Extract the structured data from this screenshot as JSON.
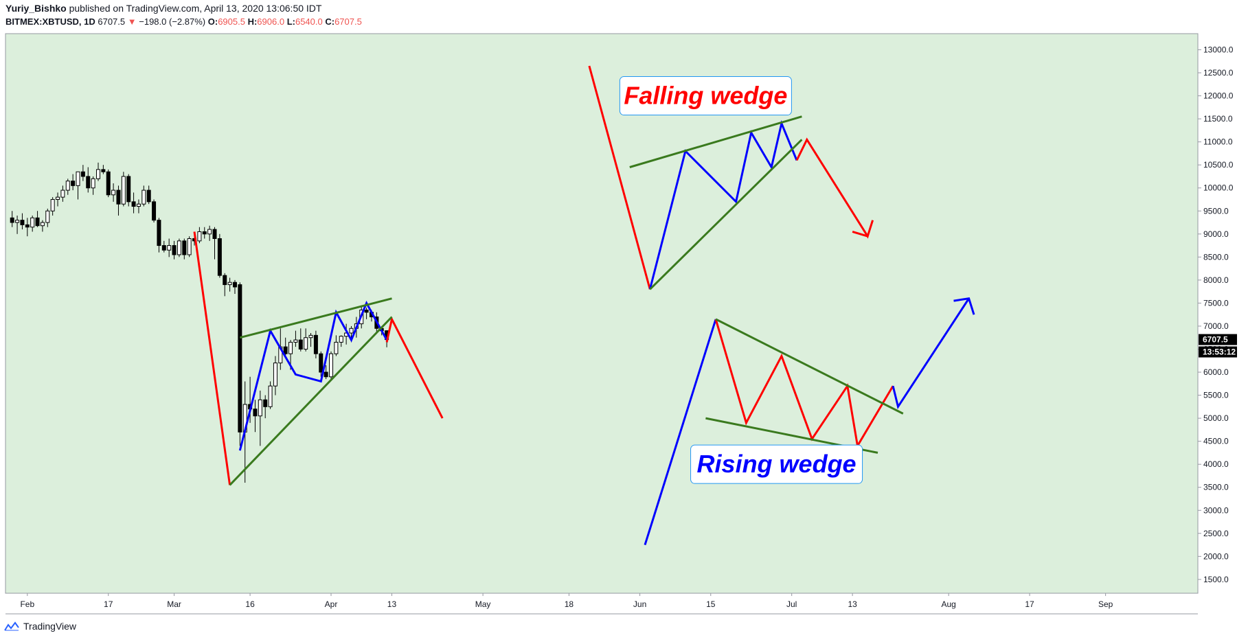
{
  "header": {
    "author": "Yuriy_Bishko",
    "published": "published on TradingView.com, April 13, 2020 13:06:50 IDT",
    "symbol": "BITMEX:XBTUSD, 1D",
    "last": "6707.5",
    "change": "−198.0 (−2.87%)",
    "o_label": "O:",
    "o": "6905.5",
    "h_label": "H:",
    "h": "6906.0",
    "l_label": "L:",
    "l": "6540.0",
    "c_label": "C:",
    "c": "6707.5"
  },
  "footer": {
    "brand": "TradingView"
  },
  "colors": {
    "bg": "#dcefdc",
    "candle": "#000000",
    "red": "#ff0000",
    "blue": "#0000ff",
    "green": "#3a7a1e"
  },
  "chart_data": {
    "type": "candlestick",
    "symbol": "BITMEX:XBTUSD",
    "interval": "1D",
    "y_axis": {
      "range": [
        1200,
        13350
      ],
      "ticks": [
        "1500.0",
        "2000.0",
        "2500.0",
        "3000.0",
        "3500.0",
        "4000.0",
        "4500.0",
        "5000.0",
        "5500.0",
        "6000.0",
        "6500.0",
        "7000.0",
        "7500.0",
        "8000.0",
        "8500.0",
        "9000.0",
        "9500.0",
        "10000.0",
        "10500.0",
        "11000.0",
        "11500.0",
        "12000.0",
        "12500.0",
        "13000.0"
      ]
    },
    "x_axis": {
      "start": "2020-01-29",
      "labels": [
        {
          "t": "Feb",
          "day": 3
        },
        {
          "t": "17",
          "day": 19
        },
        {
          "t": "Mar",
          "day": 32
        },
        {
          "t": "16",
          "day": 47
        },
        {
          "t": "Apr",
          "day": 63
        },
        {
          "t": "13",
          "day": 75
        },
        {
          "t": "May",
          "day": 93
        },
        {
          "t": "18",
          "day": 110
        },
        {
          "t": "Jun",
          "day": 124
        },
        {
          "t": "15",
          "day": 138
        },
        {
          "t": "Jul",
          "day": 154
        },
        {
          "t": "13",
          "day": 166
        },
        {
          "t": "Aug",
          "day": 185
        },
        {
          "t": "17",
          "day": 201
        },
        {
          "t": "Sep",
          "day": 216
        }
      ]
    },
    "price_label": "6707.5",
    "countdown_label": "13:53:12",
    "candles": [
      [
        9350,
        9500,
        9150,
        9250
      ],
      [
        9250,
        9400,
        9000,
        9300
      ],
      [
        9300,
        9450,
        9100,
        9200
      ],
      [
        9200,
        9350,
        8950,
        9150
      ],
      [
        9150,
        9400,
        9050,
        9350
      ],
      [
        9350,
        9500,
        9150,
        9180
      ],
      [
        9180,
        9300,
        9050,
        9250
      ],
      [
        9250,
        9550,
        9150,
        9500
      ],
      [
        9500,
        9800,
        9400,
        9750
      ],
      [
        9750,
        9900,
        9600,
        9800
      ],
      [
        9800,
        10050,
        9700,
        9950
      ],
      [
        9950,
        10200,
        9850,
        10150
      ],
      [
        10150,
        10300,
        9950,
        10050
      ],
      [
        10050,
        10350,
        9750,
        10350
      ],
      [
        10350,
        10500,
        10150,
        10250
      ],
      [
        10250,
        10450,
        9900,
        10000
      ],
      [
        10000,
        10250,
        9850,
        10200
      ],
      [
        10200,
        10550,
        10150,
        10400
      ],
      [
        10400,
        10500,
        10300,
        10350
      ],
      [
        10350,
        10400,
        9800,
        9850
      ],
      [
        9850,
        10100,
        9700,
        9950
      ],
      [
        9950,
        10050,
        9400,
        9650
      ],
      [
        9650,
        10350,
        9600,
        10250
      ],
      [
        10250,
        10300,
        9600,
        9700
      ],
      [
        9700,
        9900,
        9450,
        9600
      ],
      [
        9600,
        9750,
        9450,
        9650
      ],
      [
        9650,
        10050,
        9600,
        9950
      ],
      [
        9950,
        10050,
        9650,
        9700
      ],
      [
        9700,
        9750,
        9250,
        9300
      ],
      [
        9300,
        9350,
        8600,
        8750
      ],
      [
        8750,
        8850,
        8600,
        8650
      ],
      [
        8650,
        8900,
        8500,
        8750
      ],
      [
        8750,
        8850,
        8450,
        8550
      ],
      [
        8550,
        8900,
        8500,
        8850
      ],
      [
        8850,
        8900,
        8450,
        8550
      ],
      [
        8550,
        8950,
        8500,
        8900
      ],
      [
        8900,
        8950,
        8750,
        8850
      ],
      [
        8850,
        9150,
        8800,
        9050
      ],
      [
        9050,
        9150,
        8900,
        9000
      ],
      [
        9000,
        9180,
        8850,
        9100
      ],
      [
        9100,
        9150,
        8450,
        8900
      ],
      [
        8900,
        9000,
        8050,
        8100
      ],
      [
        8100,
        8150,
        7650,
        7900
      ],
      [
        7900,
        8050,
        7750,
        7950
      ],
      [
        7950,
        8000,
        7700,
        7850
      ],
      [
        7900,
        7950,
        4400,
        4700
      ],
      [
        4700,
        5800,
        3600,
        5300
      ],
      [
        5300,
        5900,
        4900,
        5200
      ],
      [
        5200,
        5400,
        4700,
        5050
      ],
      [
        5050,
        5600,
        4400,
        5400
      ],
      [
        5400,
        5500,
        5000,
        5250
      ],
      [
        5250,
        5800,
        5200,
        5700
      ],
      [
        5700,
        6350,
        5500,
        6200
      ],
      [
        6200,
        6950,
        6050,
        6550
      ],
      [
        6550,
        6750,
        6350,
        6400
      ],
      [
        6400,
        6700,
        6050,
        6650
      ],
      [
        6650,
        6900,
        6550,
        6700
      ],
      [
        6700,
        6950,
        6450,
        6500
      ],
      [
        6500,
        6950,
        6450,
        6750
      ],
      [
        6750,
        6850,
        6550,
        6800
      ],
      [
        6800,
        6900,
        6300,
        6400
      ],
      [
        6400,
        6450,
        5900,
        6000
      ],
      [
        6000,
        6150,
        5850,
        5900
      ],
      [
        5900,
        6450,
        5850,
        6400
      ],
      [
        6400,
        6800,
        6350,
        6650
      ],
      [
        6650,
        6800,
        6550,
        6780
      ],
      [
        6780,
        7050,
        6600,
        6850
      ],
      [
        6850,
        7000,
        6650,
        6950
      ],
      [
        6950,
        7200,
        6750,
        7050
      ],
      [
        7050,
        7450,
        6950,
        7350
      ],
      [
        7350,
        7400,
        7150,
        7300
      ],
      [
        7300,
        7350,
        7100,
        7200
      ],
      [
        7200,
        7300,
        6850,
        6950
      ],
      [
        6950,
        7000,
        6800,
        6900
      ],
      [
        6900,
        6910,
        6540,
        6708
      ]
    ],
    "annotations": [
      {
        "kind": "polyline",
        "color": "red",
        "points": [
          [
            36,
            9050
          ],
          [
            43,
            3550
          ]
        ]
      },
      {
        "kind": "polyline",
        "color": "blue",
        "points": [
          [
            45,
            4300
          ],
          [
            51,
            6900
          ],
          [
            56,
            5950
          ],
          [
            61,
            5800
          ],
          [
            64,
            7300
          ],
          [
            67,
            6700
          ],
          [
            70,
            7500
          ],
          [
            73,
            6900
          ],
          [
            74,
            6700
          ]
        ]
      },
      {
        "kind": "polyline",
        "color": "red",
        "points": [
          [
            74,
            6650
          ],
          [
            75,
            7150
          ],
          [
            85,
            5000
          ]
        ]
      },
      {
        "kind": "line",
        "color": "green",
        "points": [
          [
            45,
            6750
          ],
          [
            75,
            7600
          ]
        ]
      },
      {
        "kind": "line",
        "color": "green",
        "points": [
          [
            43,
            3550
          ],
          [
            75,
            7200
          ]
        ]
      },
      {
        "kind": "polyline",
        "color": "red",
        "points": [
          [
            114,
            12650
          ],
          [
            126,
            7800
          ]
        ]
      },
      {
        "kind": "polyline",
        "color": "blue",
        "points": [
          [
            126,
            7800
          ],
          [
            133,
            10800
          ],
          [
            143,
            9700
          ],
          [
            146,
            11200
          ],
          [
            150,
            10450
          ],
          [
            152,
            11400
          ],
          [
            155,
            10600
          ]
        ]
      },
      {
        "kind": "polyline",
        "color": "red",
        "points": [
          [
            155,
            10600
          ],
          [
            157,
            11050
          ],
          [
            169,
            8950
          ],
          [
            170,
            9300
          ]
        ]
      },
      {
        "kind": "polyline",
        "color": "red",
        "points": [
          [
            166,
            9050
          ],
          [
            169,
            8950
          ]
        ]
      },
      {
        "kind": "line",
        "color": "green",
        "points": [
          [
            122,
            10450
          ],
          [
            156,
            11550
          ]
        ]
      },
      {
        "kind": "line",
        "color": "green",
        "points": [
          [
            126,
            7800
          ],
          [
            156,
            11050
          ]
        ]
      },
      {
        "kind": "polyline",
        "color": "blue",
        "points": [
          [
            125,
            2250
          ],
          [
            139,
            7150
          ]
        ]
      },
      {
        "kind": "polyline",
        "color": "red",
        "points": [
          [
            139,
            7150
          ],
          [
            145,
            4900
          ],
          [
            152,
            6350
          ],
          [
            158,
            4550
          ],
          [
            165,
            5700
          ],
          [
            167,
            4400
          ],
          [
            174,
            5700
          ]
        ]
      },
      {
        "kind": "polyline",
        "color": "blue",
        "points": [
          [
            174,
            5700
          ],
          [
            175,
            5250
          ],
          [
            189,
            7600
          ]
        ]
      },
      {
        "kind": "polyline",
        "color": "blue",
        "points": [
          [
            186,
            7550
          ],
          [
            189,
            7600
          ],
          [
            190,
            7250
          ]
        ]
      },
      {
        "kind": "line",
        "color": "green",
        "points": [
          [
            137,
            5000
          ],
          [
            171,
            4250
          ]
        ]
      },
      {
        "kind": "line",
        "color": "green",
        "points": [
          [
            139,
            7150
          ],
          [
            176,
            5100
          ]
        ]
      }
    ],
    "labels": [
      {
        "text": "Falling wedge",
        "color": "red",
        "anchor_day": 137,
        "anchor_price": 12000
      },
      {
        "text": "Rising wedge",
        "color": "blue",
        "anchor_day": 151,
        "anchor_price": 4000
      }
    ]
  }
}
